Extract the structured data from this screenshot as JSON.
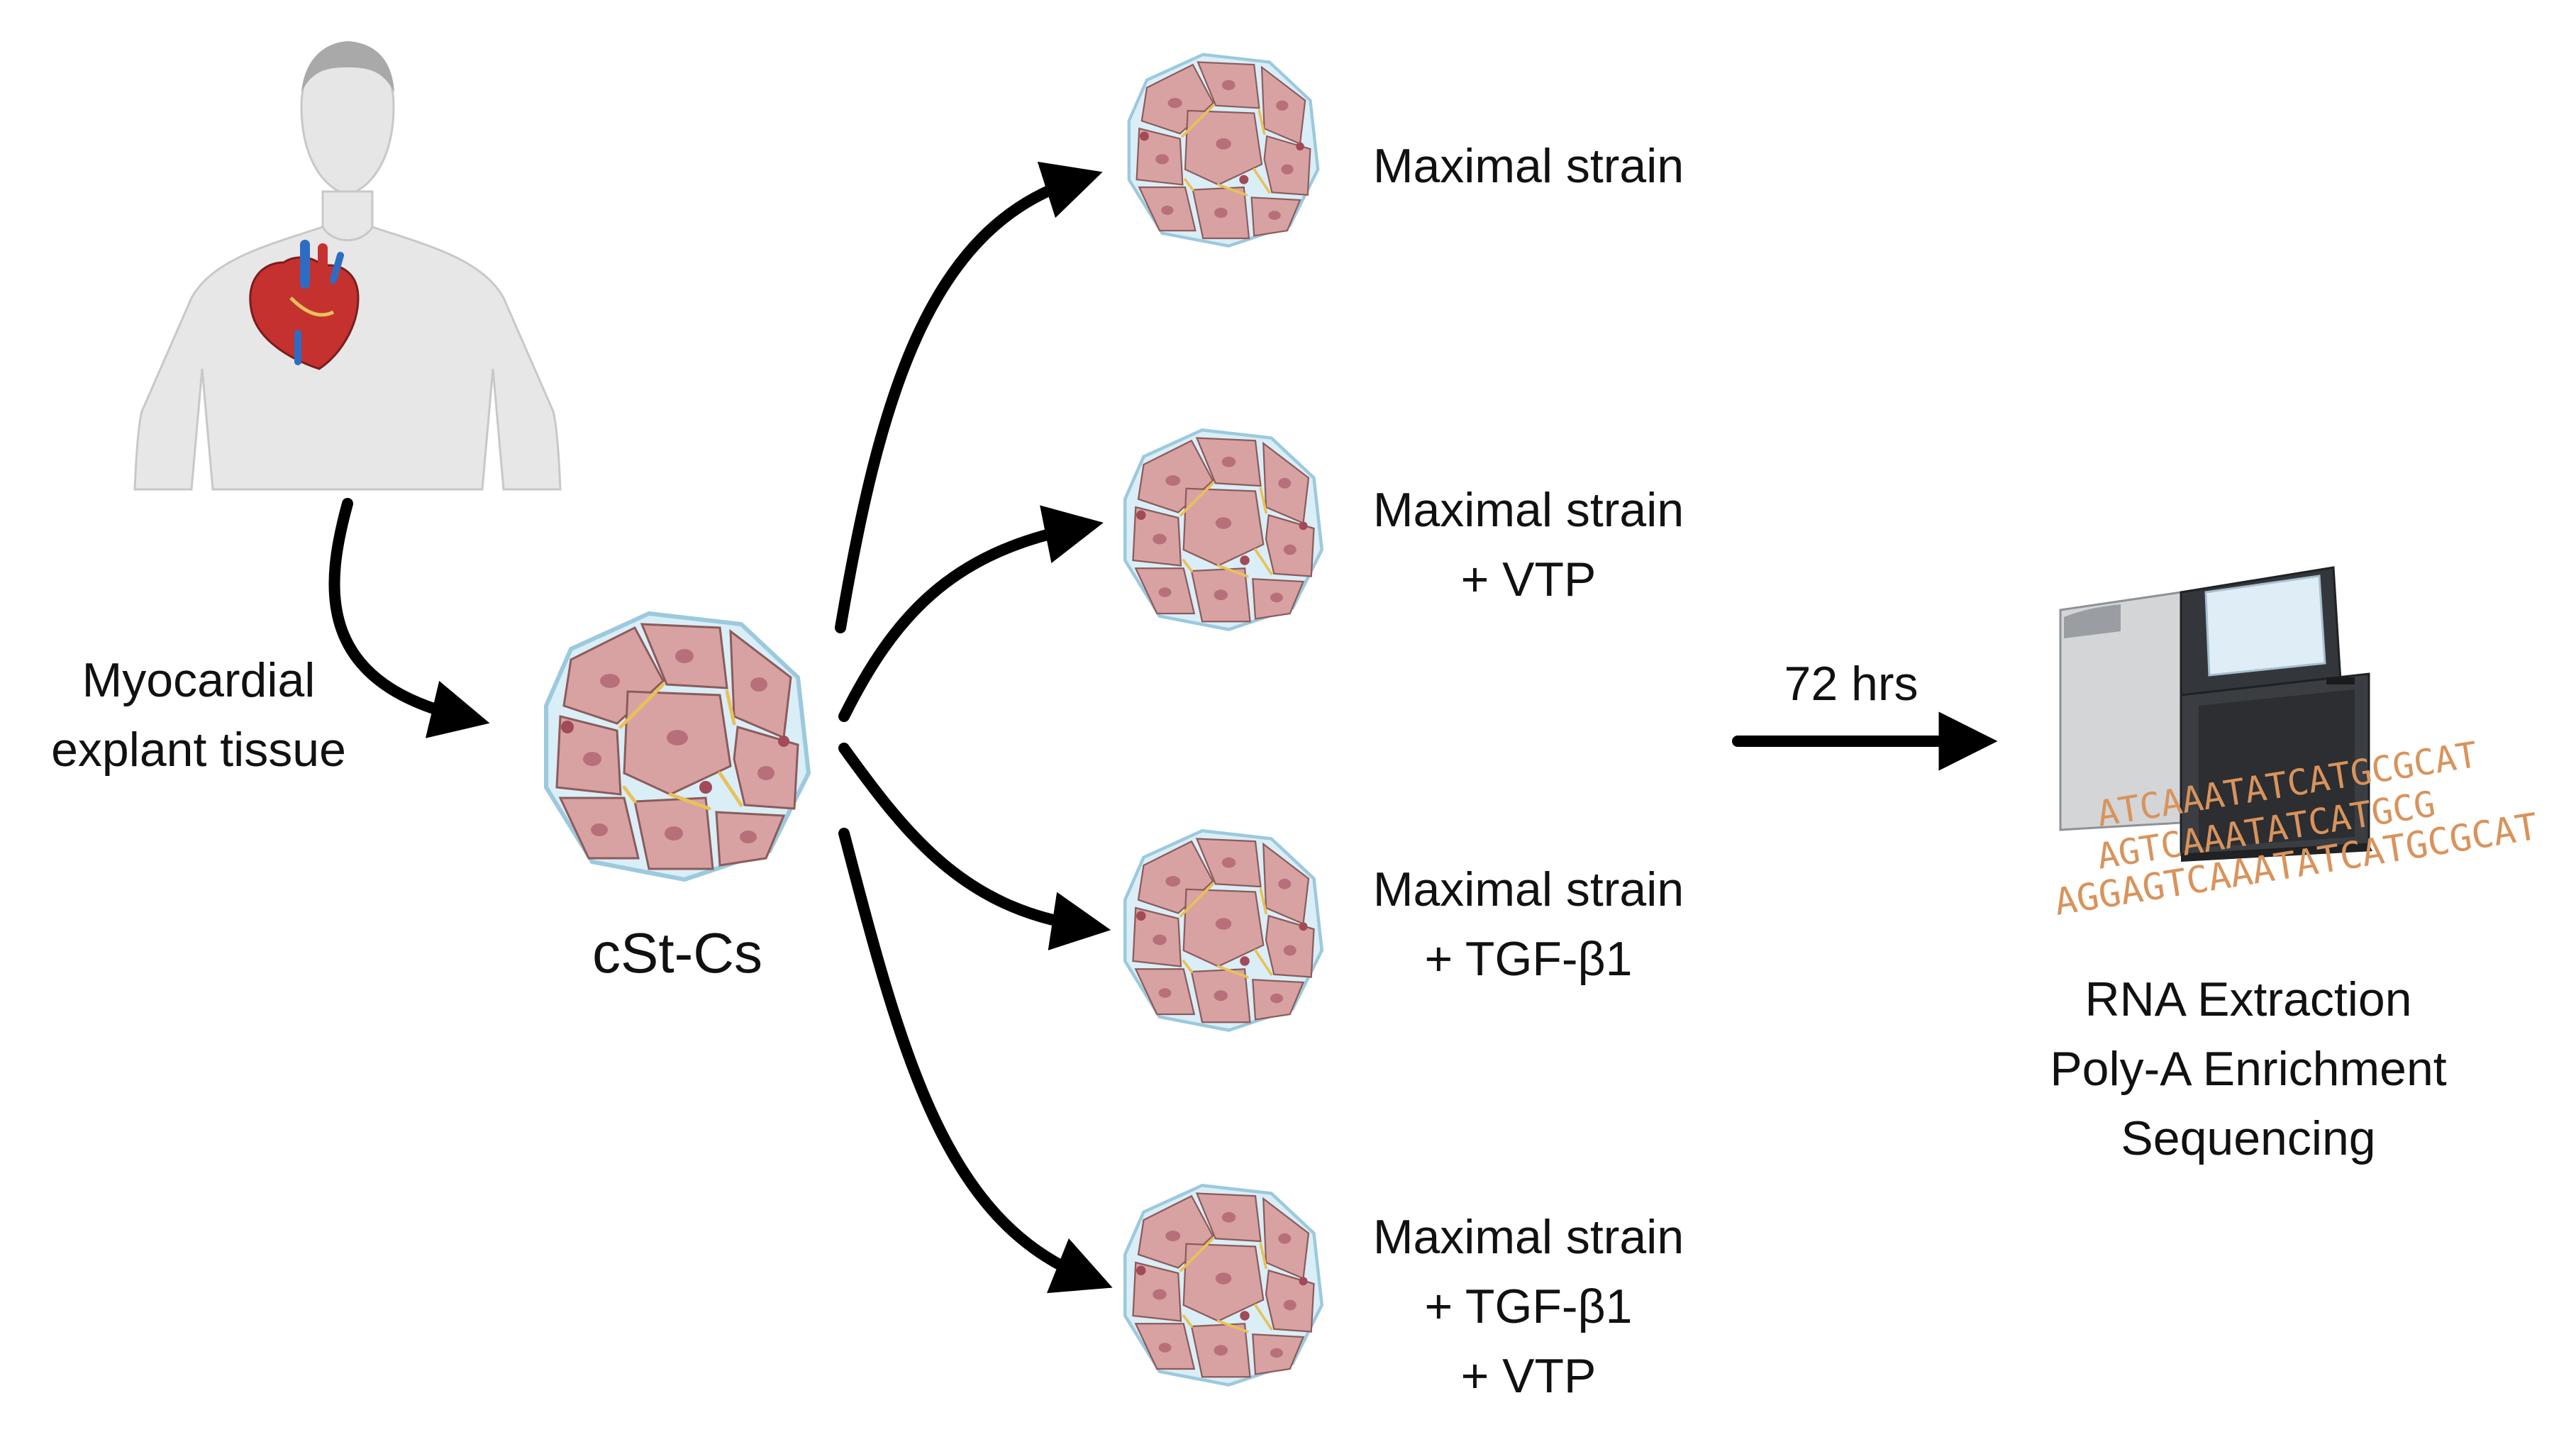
{
  "labels": {
    "tissue_line1": "Myocardial",
    "tissue_line2": "explant tissue",
    "slice": "cSt-Cs",
    "time": "72 hrs",
    "proc_line1": "RNA Extraction",
    "proc_line2": "Poly-A Enrichment",
    "proc_line3": "Sequencing"
  },
  "conditions": [
    {
      "line1": "Maximal strain",
      "line2": "",
      "line3": ""
    },
    {
      "line1": "Maximal strain",
      "line2": "+ VTP",
      "line3": ""
    },
    {
      "line1": "Maximal strain",
      "line2": "+ TGF-β1",
      "line3": ""
    },
    {
      "line1": "Maximal strain",
      "line2": "+ TGF-β1",
      "line3": "+ VTP"
    }
  ],
  "dna_strands": [
    "ATCAAATATCATGCGCAT",
    "AGTCAAATATCATGCG",
    "AGGAGTCAAATATCATGCGCAT"
  ],
  "colors": {
    "arrow": "#000000",
    "cell_fill": "#d8a2a2",
    "cell_stroke": "#8c5b5b",
    "nucleus": "#b7707a",
    "matrix": "#d9eef7",
    "fiber": "#e8c15a",
    "skin": "#e7e7e7",
    "dna_text": "#d9935b",
    "machine_dark": "#3a3d42",
    "machine_light": "#cfd1d3"
  }
}
